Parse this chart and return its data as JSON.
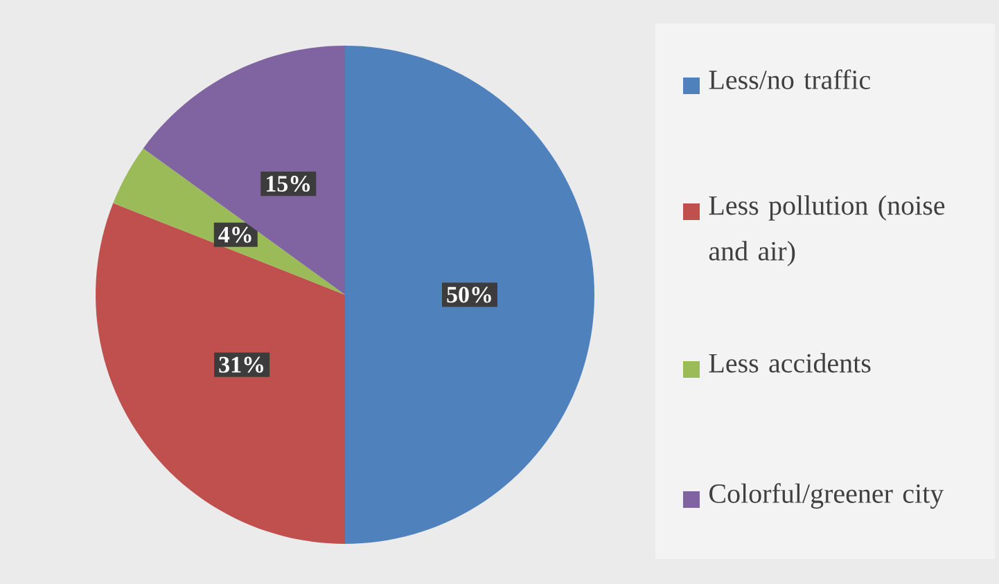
{
  "chart_data": {
    "type": "pie",
    "categories": [
      "Less/no traffic",
      "Less pollution (noise and air)",
      "Less accidents",
      "Colorful/greener city"
    ],
    "values": [
      50,
      31,
      4,
      15
    ],
    "colors": [
      "#4f81bd",
      "#c0504d",
      "#9bbb59",
      "#8064a2"
    ],
    "value_labels": [
      "50%",
      "31%",
      "4%",
      "15%"
    ],
    "legend": "right"
  }
}
